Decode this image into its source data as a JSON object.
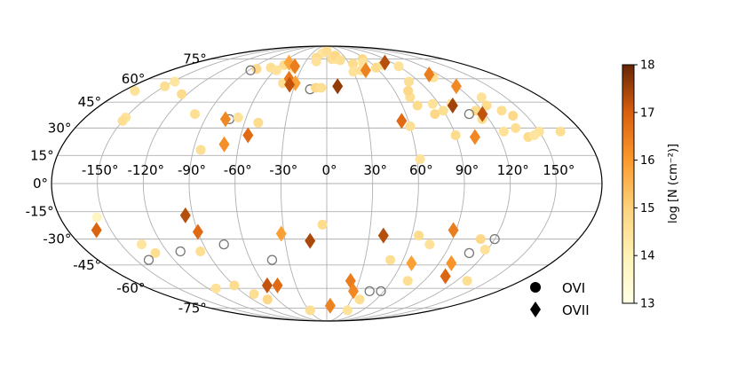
{
  "chart_data": {
    "type": "scatter",
    "projection": "mollweide",
    "grid": true,
    "colormap": "YlOrBr",
    "xticks": [
      "-150°",
      "-120°",
      "-90°",
      "-60°",
      "-30°",
      "0°",
      "30°",
      "60°",
      "90°",
      "120°",
      "150°"
    ],
    "yticks": [
      "75°",
      "60°",
      "45°",
      "30°",
      "15°",
      "0°",
      "-15°",
      "-30°",
      "-45°",
      "-60°",
      "-75°"
    ],
    "legend": [
      {
        "marker": "circle",
        "label": "OVI"
      },
      {
        "marker": "diamond",
        "label": "OVII"
      }
    ],
    "legend_position": "lower-right",
    "colorbar": {
      "label": "log [N (cm⁻²)]",
      "range": [
        13,
        18
      ],
      "ticks": [
        "13",
        "14",
        "15",
        "16",
        "17",
        "18"
      ]
    },
    "series": [
      {
        "name": "OVI",
        "marker": "circle",
        "points": [
          {
            "lon": -150,
            "lat": 36,
            "v": 14.5
          },
          {
            "lon": -150,
            "lat": 34,
            "v": 14.6
          },
          {
            "lon": -170,
            "lat": 52,
            "v": 14.5
          },
          {
            "lon": -150,
            "lat": 55,
            "v": 14.6
          },
          {
            "lon": -148,
            "lat": 58,
            "v": 14.4
          },
          {
            "lon": -125,
            "lat": 50,
            "v": 14.7
          },
          {
            "lon": -100,
            "lat": 38,
            "v": 14.6
          },
          {
            "lon": -72,
            "lat": 35,
            "v": null
          },
          {
            "lon": -66,
            "lat": 36,
            "v": 14.5
          },
          {
            "lon": -50,
            "lat": 33,
            "v": 14.7
          },
          {
            "lon": -85,
            "lat": 18,
            "v": 14.6
          },
          {
            "lon": -83,
            "lat": 67,
            "v": 14.8
          },
          {
            "lon": -88,
            "lat": 66,
            "v": null
          },
          {
            "lon": -55,
            "lat": 70,
            "v": 14.7
          },
          {
            "lon": -68,
            "lat": 68,
            "v": 14.6
          },
          {
            "lon": -58,
            "lat": 66,
            "v": 14.5
          },
          {
            "lon": -40,
            "lat": 68,
            "v": 14.7
          },
          {
            "lon": -42,
            "lat": 57,
            "v": 14.6
          },
          {
            "lon": -10,
            "lat": 80,
            "v": 14.4
          },
          {
            "lon": -17,
            "lat": 76,
            "v": 14.7
          },
          {
            "lon": -15,
            "lat": 73,
            "v": 14.5
          },
          {
            "lon": 0,
            "lat": 83,
            "v": 14.6
          },
          {
            "lon": -15,
            "lat": 53,
            "v": null
          },
          {
            "lon": -10,
            "lat": 54,
            "v": 14.8
          },
          {
            "lon": -5,
            "lat": 54,
            "v": 14.6
          },
          {
            "lon": 8,
            "lat": 75,
            "v": 14.7
          },
          {
            "lon": 12,
            "lat": 75,
            "v": 14.5
          },
          {
            "lon": 15,
            "lat": 78,
            "v": 14.8
          },
          {
            "lon": 20,
            "lat": 74,
            "v": 14.6
          },
          {
            "lon": 35,
            "lat": 71,
            "v": 14.7
          },
          {
            "lon": 30,
            "lat": 65,
            "v": 14.5
          },
          {
            "lon": 40,
            "lat": 66,
            "v": 14.6
          },
          {
            "lon": 55,
            "lat": 75,
            "v": 14.8
          },
          {
            "lon": 50,
            "lat": 72,
            "v": 14.5
          },
          {
            "lon": 60,
            "lat": 68,
            "v": 14.7
          },
          {
            "lon": 70,
            "lat": 48,
            "v": 14.6
          },
          {
            "lon": 85,
            "lat": 44,
            "v": 14.5
          },
          {
            "lon": 72,
            "lat": 43,
            "v": 14.7
          },
          {
            "lon": 60,
            "lat": 31,
            "v": 14.6
          },
          {
            "lon": 62,
            "lat": 13,
            "v": 14.5
          },
          {
            "lon": 82,
            "lat": 38,
            "v": 14.8
          },
          {
            "lon": 90,
            "lat": 40,
            "v": 14.6
          },
          {
            "lon": 100,
            "lat": 44,
            "v": 14.5
          },
          {
            "lon": 115,
            "lat": 40,
            "v": 14.7
          },
          {
            "lon": 108,
            "lat": 38,
            "v": null
          },
          {
            "lon": 115,
            "lat": 35,
            "v": 14.6
          },
          {
            "lon": 127,
            "lat": 43,
            "v": 14.7
          },
          {
            "lon": 130,
            "lat": 48,
            "v": 14.5
          },
          {
            "lon": 135,
            "lat": 40,
            "v": 14.6
          },
          {
            "lon": 140,
            "lat": 37,
            "v": 14.8
          },
          {
            "lon": 125,
            "lat": 28,
            "v": 14.5
          },
          {
            "lon": 135,
            "lat": 30,
            "v": 14.6
          },
          {
            "lon": 140,
            "lat": 25,
            "v": 14.7
          },
          {
            "lon": 150,
            "lat": 28,
            "v": 14.5
          },
          {
            "lon": 165,
            "lat": 28,
            "v": 14.6
          },
          {
            "lon": 145,
            "lat": 26,
            "v": 14.4
          },
          {
            "lon": 90,
            "lat": 26,
            "v": 14.7
          },
          {
            "lon": 110,
            "lat": 61,
            "v": 14.5
          },
          {
            "lon": 80,
            "lat": 58,
            "v": 14.6
          },
          {
            "lon": 72,
            "lat": 52,
            "v": 14.8
          },
          {
            "lon": 90,
            "lat": 69,
            "v": 14.5
          },
          {
            "lon": 72,
            "lat": 70,
            "v": 14.6
          },
          {
            "lon": -155,
            "lat": -18,
            "v": 13.8
          },
          {
            "lon": -135,
            "lat": -33,
            "v": 14.4
          },
          {
            "lon": -130,
            "lat": -38,
            "v": 14.6
          },
          {
            "lon": -140,
            "lat": -42,
            "v": null
          },
          {
            "lon": -110,
            "lat": -37,
            "v": null
          },
          {
            "lon": -75,
            "lat": -33,
            "v": null
          },
          {
            "lon": -95,
            "lat": -37,
            "v": 14.6
          },
          {
            "lon": -112,
            "lat": -60,
            "v": 14.5
          },
          {
            "lon": -90,
            "lat": -58,
            "v": 14.7
          },
          {
            "lon": -80,
            "lat": -64,
            "v": 14.6
          },
          {
            "lon": -72,
            "lat": -68,
            "v": 14.8
          },
          {
            "lon": -43,
            "lat": -42,
            "v": null
          },
          {
            "lon": -28,
            "lat": -77,
            "v": 14.6
          },
          {
            "lon": -3,
            "lat": -22,
            "v": 14.7
          },
          {
            "lon": 35,
            "lat": -77,
            "v": 14.5
          },
          {
            "lon": 40,
            "lat": -68,
            "v": 14.6
          },
          {
            "lon": 45,
            "lat": -62,
            "v": null
          },
          {
            "lon": 57,
            "lat": -62,
            "v": null
          },
          {
            "lon": 50,
            "lat": -42,
            "v": 14.6
          },
          {
            "lon": 65,
            "lat": -28,
            "v": 14.7
          },
          {
            "lon": 75,
            "lat": -33,
            "v": 14.5
          },
          {
            "lon": 75,
            "lat": -55,
            "v": 14.6
          },
          {
            "lon": 110,
            "lat": -30,
            "v": 14.8
          },
          {
            "lon": 120,
            "lat": -30,
            "v": null
          },
          {
            "lon": 108,
            "lat": -38,
            "v": null
          },
          {
            "lon": 118,
            "lat": -36,
            "v": 14.5
          },
          {
            "lon": 130,
            "lat": -55,
            "v": 14.6
          }
        ]
      },
      {
        "name": "OVII",
        "marker": "diamond",
        "points": [
          {
            "lon": -75,
            "lat": 35,
            "v": 16.3
          },
          {
            "lon": -70,
            "lat": 21,
            "v": 16.2
          },
          {
            "lon": -55,
            "lat": 26,
            "v": 16.8
          },
          {
            "lon": -52,
            "lat": 72,
            "v": 15.8
          },
          {
            "lon": -40,
            "lat": 69,
            "v": 16.5
          },
          {
            "lon": -38,
            "lat": 60,
            "v": 16.6
          },
          {
            "lon": -30,
            "lat": 57,
            "v": 15.9
          },
          {
            "lon": -35,
            "lat": 56,
            "v": 17.2
          },
          {
            "lon": 10,
            "lat": 55,
            "v": 17.6
          },
          {
            "lon": 45,
            "lat": 66,
            "v": 16.4
          },
          {
            "lon": 80,
            "lat": 72,
            "v": 17.3
          },
          {
            "lon": 55,
            "lat": 34,
            "v": 16.8
          },
          {
            "lon": 100,
            "lat": 43,
            "v": 17.5
          },
          {
            "lon": 120,
            "lat": 55,
            "v": 16.3
          },
          {
            "lon": 118,
            "lat": 38,
            "v": 17.2
          },
          {
            "lon": 103,
            "lat": 25,
            "v": 16.3
          },
          {
            "lon": 110,
            "lat": 63,
            "v": 16.5
          },
          {
            "lon": -160,
            "lat": -25,
            "v": 16.9
          },
          {
            "lon": -95,
            "lat": -17,
            "v": 17.3
          },
          {
            "lon": -90,
            "lat": -26,
            "v": 16.8
          },
          {
            "lon": -32,
            "lat": -27,
            "v": 15.9
          },
          {
            "lon": -12,
            "lat": -31,
            "v": 17.4
          },
          {
            "lon": -58,
            "lat": -58,
            "v": 17.2
          },
          {
            "lon": -48,
            "lat": -58,
            "v": 16.8
          },
          {
            "lon": 22,
            "lat": -55,
            "v": 16.5
          },
          {
            "lon": 5,
            "lat": -73,
            "v": 16.4
          },
          {
            "lon": 28,
            "lat": -62,
            "v": 16.3
          },
          {
            "lon": 40,
            "lat": -28,
            "v": 17.3
          },
          {
            "lon": 88,
            "lat": -25,
            "v": 16.5
          },
          {
            "lon": 68,
            "lat": -44,
            "v": 15.9
          },
          {
            "lon": 100,
            "lat": -44,
            "v": 16.1
          },
          {
            "lon": 105,
            "lat": -52,
            "v": 16.9
          }
        ]
      }
    ]
  }
}
